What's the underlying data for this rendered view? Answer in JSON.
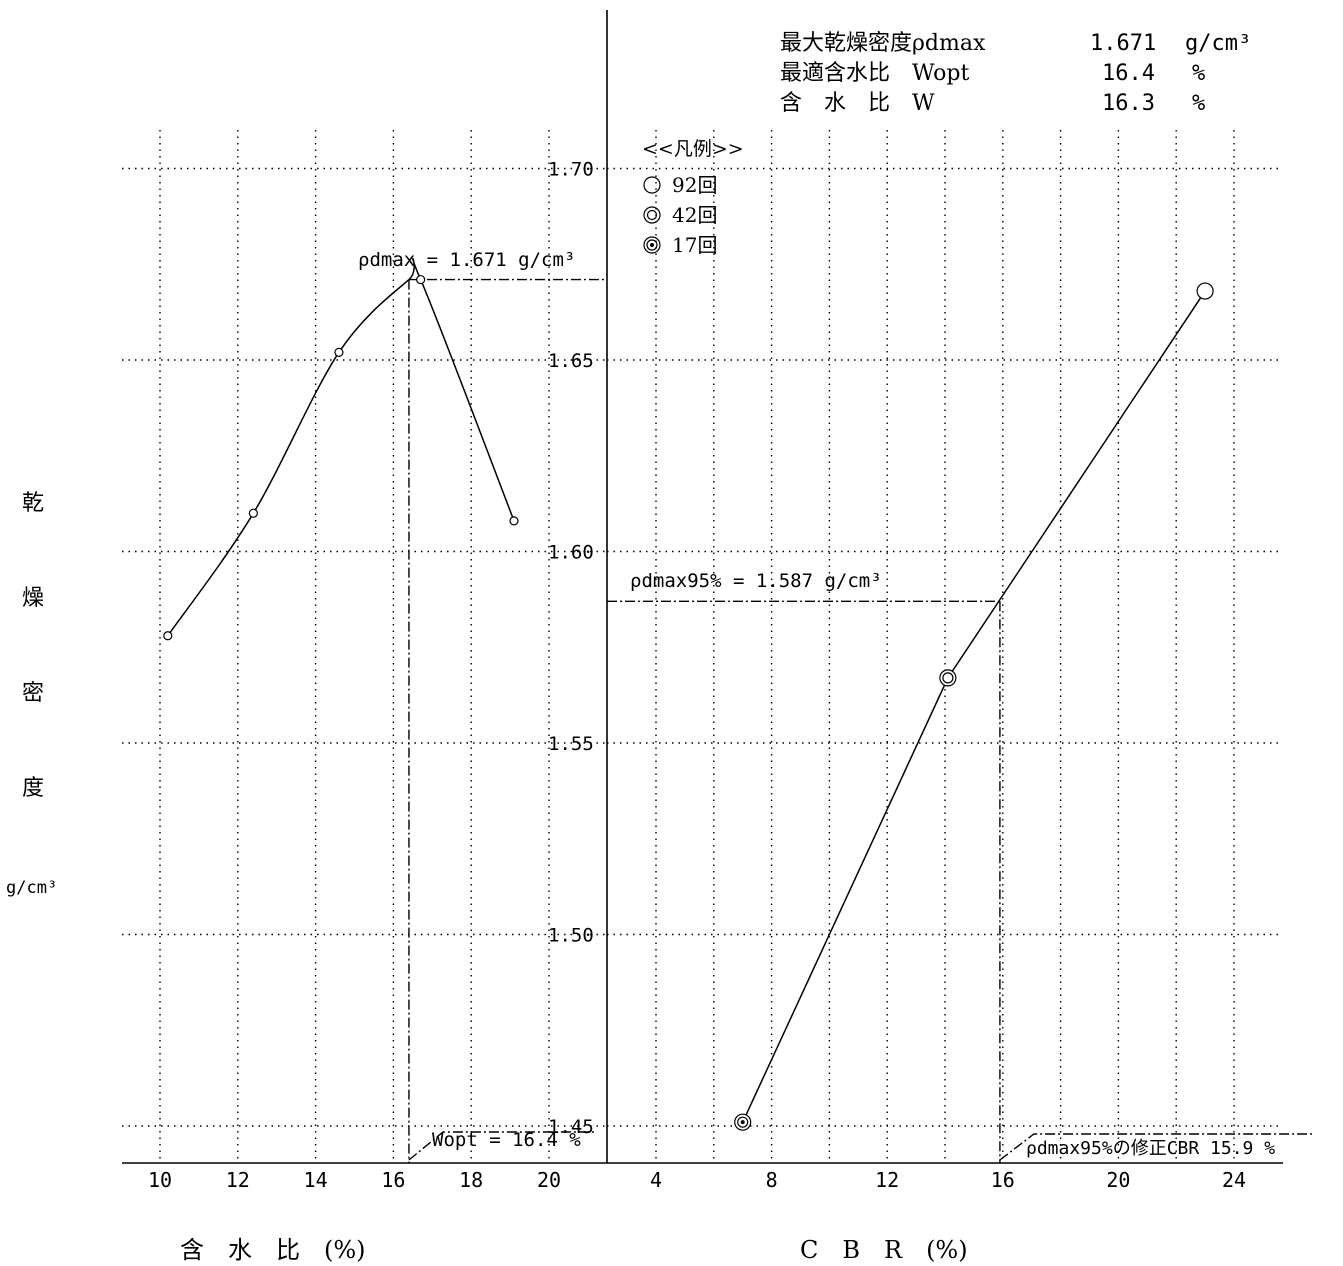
{
  "summary": {
    "rows": [
      {
        "label": "最大乾燥密度ρdmax",
        "value": "1.671",
        "unit": "g/cm³"
      },
      {
        "label": "最適含水比　Wopt",
        "value": "16.4",
        "unit": "%"
      },
      {
        "label": "含　水　比　W",
        "value": "16.3",
        "unit": "%"
      }
    ]
  },
  "legend": {
    "title": "<<凡例>>",
    "items": [
      {
        "symbol": "○",
        "label": "92回"
      },
      {
        "symbol": "◎",
        "label": "42回"
      },
      {
        "symbol": "◎",
        "label": "17回"
      }
    ]
  },
  "ylabel_chars": [
    "乾",
    "燥",
    "密",
    "度"
  ],
  "ylabel_unit": "g/cm³",
  "annotations": {
    "rho_dmax": "ρdmax = 1.671 g/cm³",
    "wopt": "Wopt = 16.4 %",
    "rho_dmax95": "ρdmax95% = 1.587 g/cm³",
    "cbr": "ρdmax95%の修正CBR 15.9 %"
  },
  "chart_data": [
    {
      "type": "line",
      "name": "compaction",
      "xlabel": "含　水　比　(%)",
      "ylabel": "乾燥密度 g/cm³",
      "xlim": [
        9,
        22
      ],
      "ylim": [
        1.44,
        1.74
      ],
      "xticks": [
        10,
        12,
        14,
        16,
        18,
        20
      ],
      "yticks": [
        1.45,
        1.5,
        1.55,
        1.6,
        1.65,
        1.7
      ],
      "x": [
        10.2,
        12.4,
        14.6,
        16.7,
        19.1
      ],
      "y": [
        1.578,
        1.61,
        1.652,
        1.671,
        1.608
      ],
      "max_point": {
        "x": 16.4,
        "y": 1.671
      },
      "grid": true
    },
    {
      "type": "line",
      "name": "cbr",
      "xlabel": "C　B　R　(%)",
      "xlim": [
        2,
        26
      ],
      "ylim": [
        1.44,
        1.74
      ],
      "xticks": [
        4,
        8,
        12,
        16,
        20,
        24
      ],
      "yticks": [
        1.45,
        1.5,
        1.55,
        1.6,
        1.65,
        1.7
      ],
      "points": [
        {
          "blows": "17回",
          "x": 7.0,
          "y": 1.451
        },
        {
          "blows": "42回",
          "x": 14.1,
          "y": 1.567
        },
        {
          "blows": "92回",
          "x": 23.0,
          "y": 1.668
        }
      ],
      "target": {
        "x": 15.9,
        "y": 1.587
      },
      "grid": true
    }
  ]
}
